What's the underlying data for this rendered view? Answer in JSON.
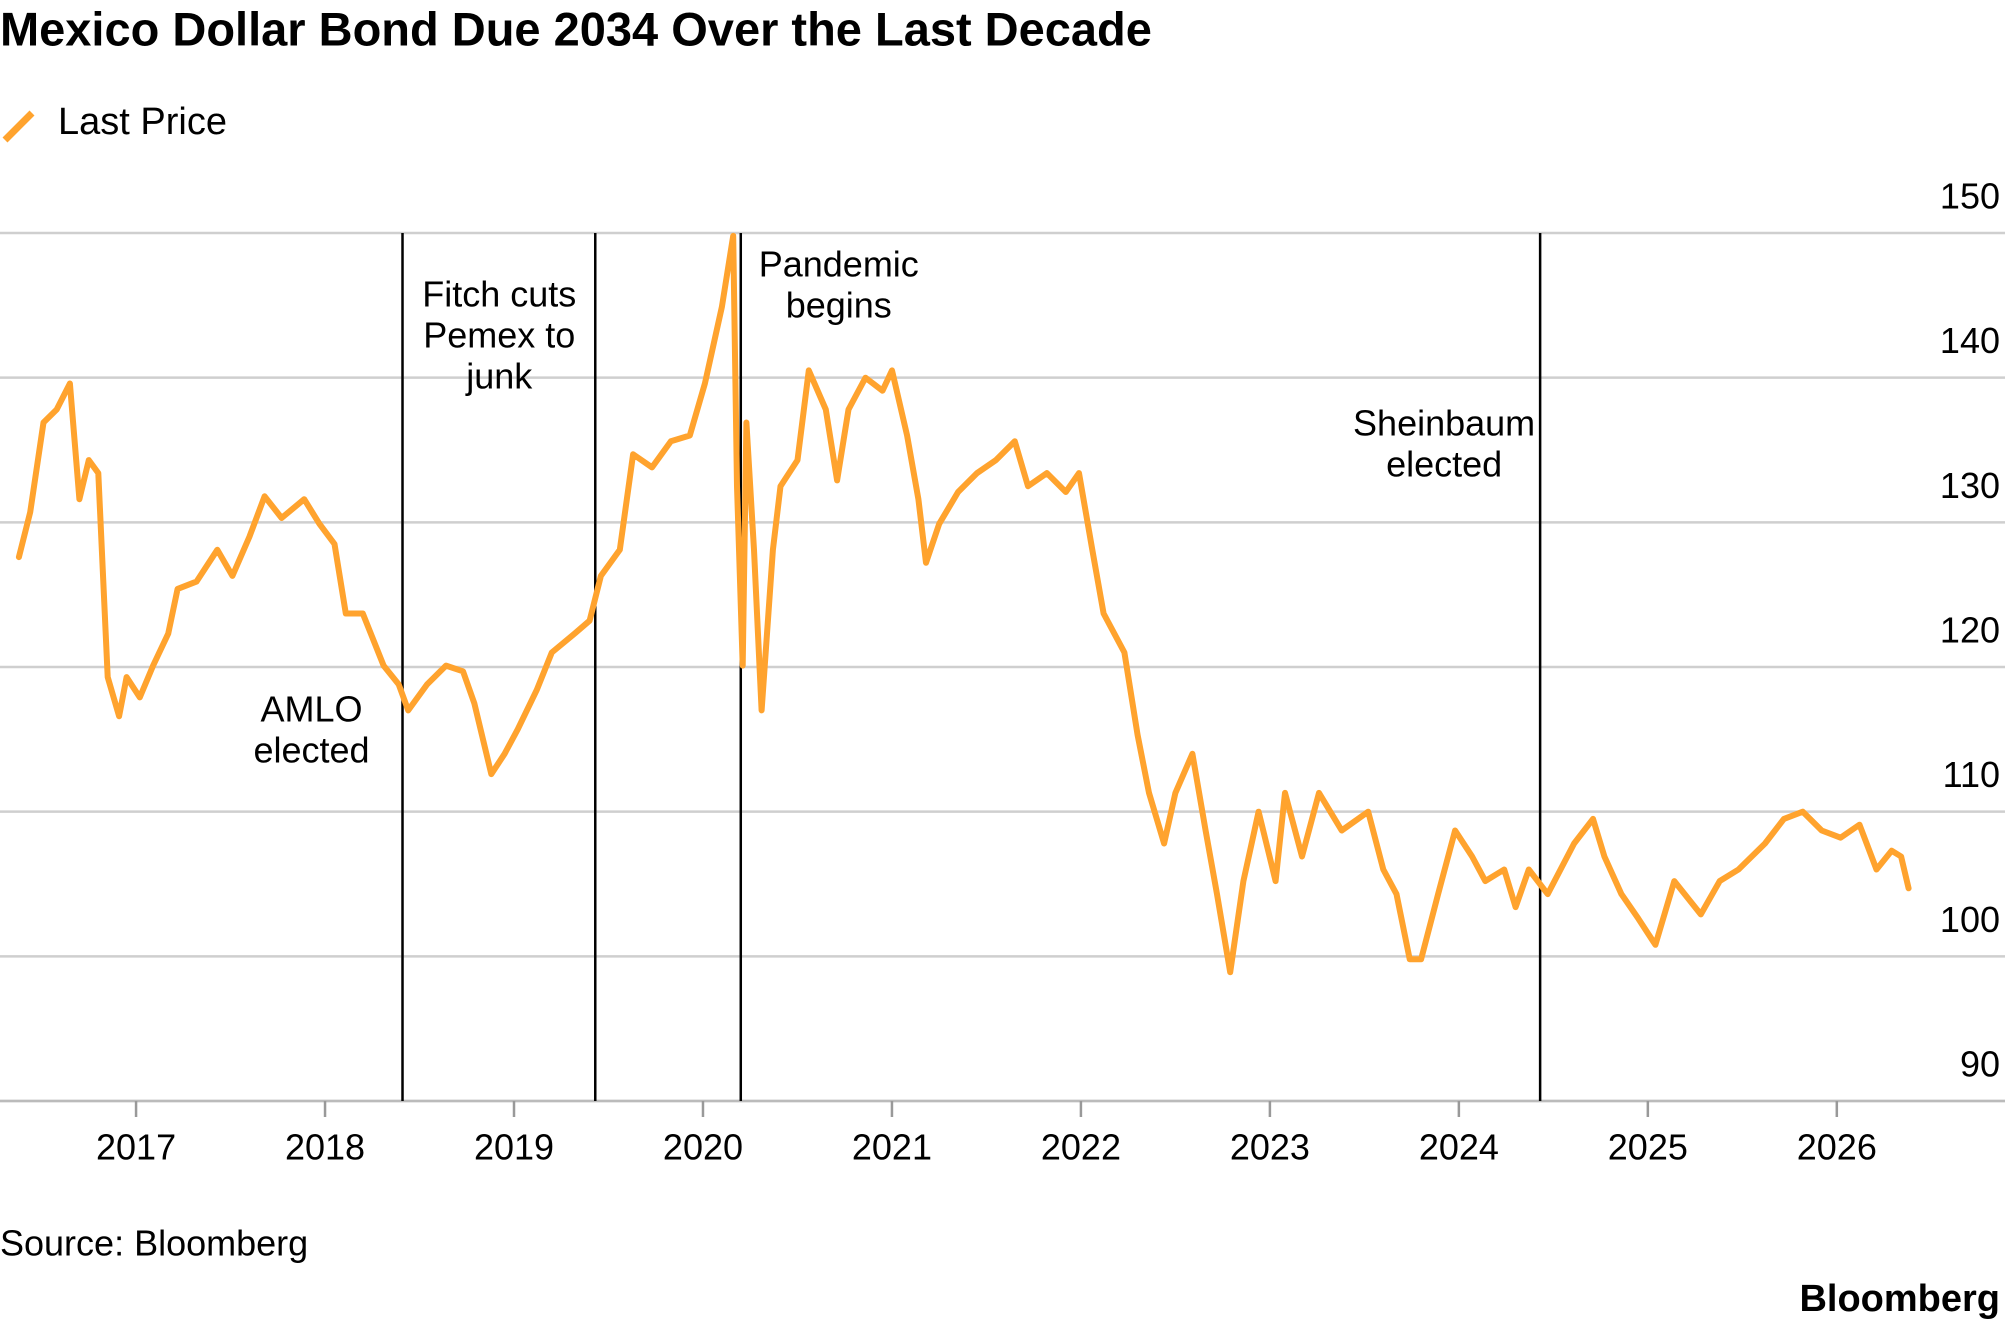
{
  "chart_data": {
    "type": "line",
    "title": "Mexico Dollar Bond Due 2034 Over the Last Decade",
    "source": "Source: Bloomberg",
    "brand": "Bloomberg",
    "x": [
      2016.38,
      2016.44,
      2016.51,
      2016.58,
      2016.65,
      2016.7,
      2016.75,
      2016.8,
      2016.85,
      2016.91,
      2016.95,
      2017.02,
      2017.09,
      2017.17,
      2017.22,
      2017.32,
      2017.43,
      2017.51,
      2017.6,
      2017.68,
      2017.77,
      2017.89,
      2017.97,
      2018.05,
      2018.11,
      2018.2,
      2018.31,
      2018.39,
      2018.44,
      2018.54,
      2018.64,
      2018.73,
      2018.79,
      2018.88,
      2018.95,
      2019.02,
      2019.12,
      2019.2,
      2019.32,
      2019.4,
      2019.46,
      2019.56,
      2019.63,
      2019.73,
      2019.83,
      2019.93,
      2020.01,
      2020.1,
      2020.16,
      2020.18,
      2020.21,
      2020.23,
      2020.27,
      2020.31,
      2020.37,
      2020.41,
      2020.5,
      2020.56,
      2020.65,
      2020.71,
      2020.77,
      2020.86,
      2020.95,
      2021.0,
      2021.08,
      2021.14,
      2021.18,
      2021.25,
      2021.35,
      2021.45,
      2021.55,
      2021.65,
      2021.72,
      2021.82,
      2021.92,
      2021.99,
      2022.06,
      2022.12,
      2022.23,
      2022.3,
      2022.36,
      2022.44,
      2022.5,
      2022.59,
      2022.66,
      2022.72,
      2022.79,
      2022.86,
      2022.94,
      2023.03,
      2023.08,
      2023.17,
      2023.26,
      2023.38,
      2023.52,
      2023.6,
      2023.67,
      2023.74,
      2023.8,
      2023.89,
      2023.98,
      2024.07,
      2024.14,
      2024.24,
      2024.3,
      2024.37,
      2024.47,
      2024.61,
      2024.71,
      2024.77,
      2024.86,
      2024.95,
      2025.04,
      2025.14,
      2025.28,
      2025.38,
      2025.48,
      2025.62,
      2025.72,
      2025.82,
      2025.92,
      2026.02,
      2026.12,
      2026.21,
      2026.29,
      2026.34,
      2026.38
    ],
    "series": [
      {
        "name": "Last Price",
        "color": "#ffa32e",
        "values": [
          127.6,
          130.7,
          136.9,
          137.8,
          139.6,
          131.6,
          134.3,
          133.4,
          119.3,
          116.6,
          119.3,
          117.9,
          120.1,
          122.3,
          125.4,
          125.9,
          128.1,
          126.3,
          129.0,
          131.8,
          130.3,
          131.6,
          129.9,
          128.5,
          123.7,
          123.7,
          120.1,
          118.8,
          117.0,
          118.8,
          120.1,
          119.7,
          117.5,
          112.6,
          114.0,
          115.7,
          118.4,
          121.0,
          122.3,
          123.2,
          126.3,
          128.1,
          134.7,
          133.8,
          135.6,
          136.0,
          139.6,
          144.9,
          149.8,
          132.5,
          120.1,
          136.9,
          128.1,
          117.0,
          128.1,
          132.5,
          134.3,
          140.5,
          137.8,
          132.9,
          137.8,
          140.0,
          139.1,
          140.5,
          136.0,
          131.6,
          127.2,
          129.9,
          132.1,
          133.4,
          134.3,
          135.6,
          132.5,
          133.4,
          132.1,
          133.4,
          128.1,
          123.7,
          121.0,
          115.3,
          111.3,
          107.8,
          111.3,
          114.0,
          108.7,
          104.3,
          98.9,
          105.2,
          110.0,
          105.2,
          111.3,
          106.9,
          111.3,
          108.7,
          110.0,
          106.0,
          104.3,
          99.8,
          99.8,
          104.3,
          108.7,
          106.9,
          105.2,
          106.0,
          103.4,
          106.0,
          104.3,
          107.8,
          109.5,
          106.9,
          104.3,
          102.6,
          100.8,
          105.2,
          102.9,
          105.2,
          106.0,
          107.8,
          109.5,
          110.0,
          108.7,
          108.2,
          109.1,
          106.0,
          107.3,
          106.9,
          104.7
        ]
      }
    ],
    "annotations": [
      {
        "x": 2018.41,
        "label": [
          "AMLO",
          "elected"
        ]
      },
      {
        "x": 2019.43,
        "label": [
          "Fitch cuts",
          "Pemex to",
          "junk"
        ]
      },
      {
        "x": 2020.2,
        "label": [
          "Pandemic",
          "begins"
        ]
      },
      {
        "x": 2024.43,
        "label": [
          "Sheinbaum",
          "elected"
        ]
      }
    ],
    "xlim": [
      2016.28,
      2026.89
    ],
    "xticks": [
      2017,
      2018,
      2019,
      2020,
      2021,
      2022,
      2023,
      2024,
      2025,
      2026
    ],
    "ylim": [
      90,
      150
    ],
    "yticks": [
      90,
      100,
      110,
      120,
      130,
      140,
      150
    ],
    "grid": true
  }
}
